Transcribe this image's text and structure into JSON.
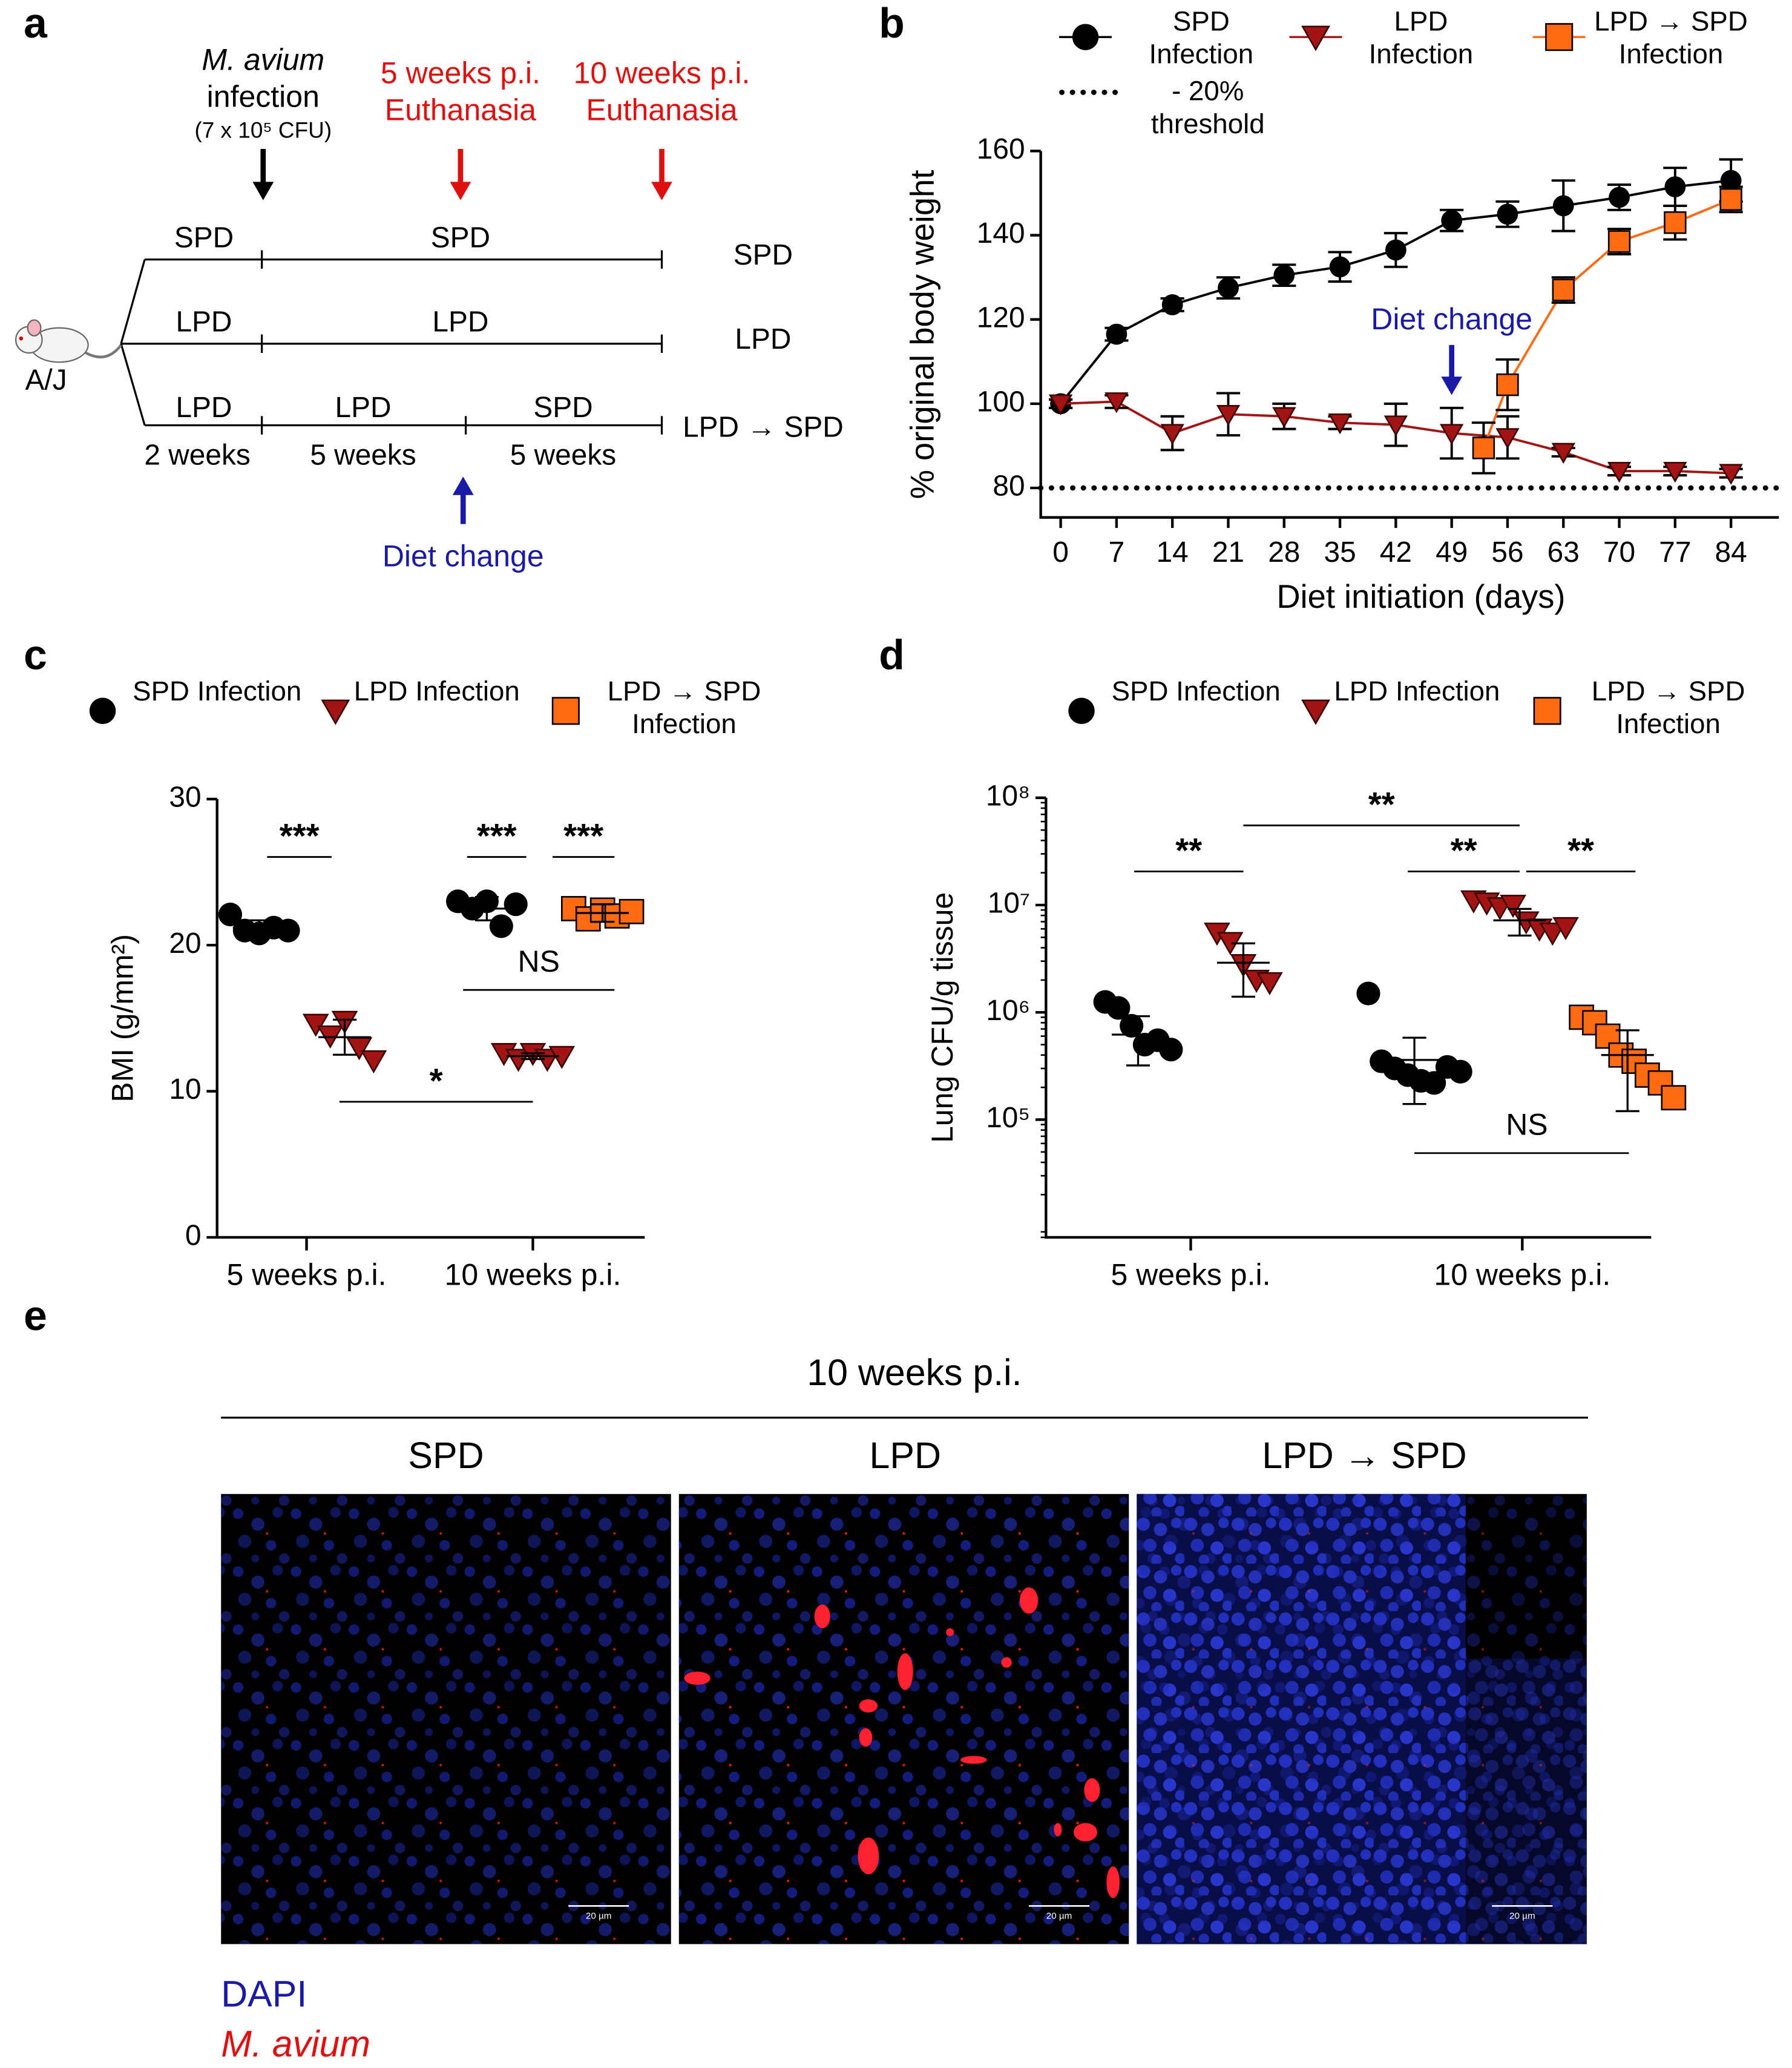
{
  "timeline": {
    "label": "a",
    "infection": {
      "organism": "M. avium",
      "text": "infection",
      "dose": "(7 x 10⁵ CFU)"
    },
    "euthanasia": [
      {
        "time": "5 weeks p.i.",
        "text": "Euthanasia"
      },
      {
        "time": "10 weeks p.i.",
        "text": "Euthanasia"
      }
    ],
    "mouse": "A/J",
    "rows": [
      {
        "segments": [
          "SPD",
          "SPD"
        ],
        "group": "SPD"
      },
      {
        "segments": [
          "LPD",
          "LPD"
        ],
        "group": "LPD"
      },
      {
        "segments": [
          "LPD",
          "LPD",
          "SPD"
        ],
        "group": "LPD → SPD"
      }
    ],
    "durations": [
      "2 weeks",
      "5 weeks",
      "5 weeks"
    ],
    "diet_change": "Diet change"
  },
  "chart_data": [
    {
      "panel": "b",
      "type": "line",
      "x_label": "Diet initiation (days)",
      "y_label": "% original body weight",
      "x": [
        0,
        7,
        14,
        21,
        28,
        35,
        42,
        49,
        56,
        63,
        70,
        77,
        84
      ],
      "xlim": [
        -2.5,
        90
      ],
      "xticks": [
        0,
        7,
        14,
        21,
        28,
        35,
        42,
        49,
        56,
        63,
        70,
        77,
        84
      ],
      "ylim": [
        73,
        160
      ],
      "yticks": [
        80,
        100,
        120,
        140,
        160
      ],
      "series": [
        {
          "name": "SPD Infection",
          "color": "#000000",
          "marker": "circle",
          "values": [
            100,
            116.5,
            123.5,
            127.5,
            130.5,
            132.5,
            136.5,
            143.5,
            145,
            147,
            149,
            151.5,
            153
          ],
          "errors": [
            1,
            1.5,
            1.5,
            2.5,
            2.5,
            3.5,
            4,
            2.5,
            3,
            6,
            3,
            4.5,
            5
          ]
        },
        {
          "name": "LPD Infection",
          "color": "#a31515",
          "marker": "triangle-down",
          "values": [
            100,
            100.5,
            93,
            97.5,
            97,
            95.5,
            95,
            93,
            92,
            88.5,
            84,
            84,
            83.5
          ],
          "errors": [
            1,
            1.5,
            4,
            5,
            3,
            1.5,
            5,
            6,
            5,
            1,
            1,
            1,
            1
          ]
        },
        {
          "name": "LPD → SPD Infection",
          "color": "#ff6a13",
          "marker": "square",
          "x": [
            53,
            56,
            63,
            70,
            77,
            84
          ],
          "values": [
            89.5,
            104.5,
            127,
            138.5,
            143,
            148.5
          ],
          "errors": [
            6,
            6,
            3,
            3,
            4,
            3
          ]
        }
      ],
      "threshold": {
        "label": "- 20% threshold",
        "value": 80
      },
      "annotation": {
        "text": "Diet change",
        "x": 49,
        "color": "#1a1aa6"
      }
    },
    {
      "panel": "c",
      "type": "scatter",
      "y_label": "BMI (g/mm²)",
      "categories": [
        "5 weeks p.i.",
        "10 weeks p.i."
      ],
      "ylim": [
        0,
        30
      ],
      "yticks": [
        0,
        10,
        20,
        30
      ],
      "series": [
        {
          "name": "SPD Infection",
          "color": "#000000",
          "marker": "circle",
          "values": [
            [
              22.1,
              21.0,
              20.8,
              21.2,
              21.0
            ],
            [
              23.0,
              22.5,
              23.0,
              21.3,
              22.8
            ]
          ],
          "mean": [
            21.2,
            22.5
          ],
          "sd": [
            0.5,
            0.8
          ]
        },
        {
          "name": "LPD Infection",
          "color": "#a31515",
          "marker": "triangle-down",
          "values": [
            [
              14.6,
              13.8,
              14.8,
              13.0,
              12.1
            ],
            [
              12.6,
              12.2,
              12.6,
              12.2,
              12.4
            ]
          ],
          "mean": [
            13.7,
            12.4
          ],
          "sd": [
            1.2,
            0.2
          ]
        },
        {
          "name": "LPD → SPD Infection",
          "color": "#ff6a13",
          "marker": "square",
          "values": [
            null,
            [
              22.5,
              21.8,
              22.4,
              22.0,
              22.3
            ]
          ],
          "mean": [
            null,
            22.2
          ],
          "sd": [
            null,
            0.6
          ]
        }
      ],
      "significance": [
        "***",
        "***",
        "***",
        "*",
        "NS"
      ]
    },
    {
      "panel": "d",
      "type": "scatter",
      "y_label": "Lung CFU/g tissue",
      "categories": [
        "5 weeks p.i.",
        "10 weeks p.i."
      ],
      "log_scale": true,
      "ylim": [
        8000,
        100000000
      ],
      "yticks": [
        {
          "value": 100000,
          "label": "10⁵"
        },
        {
          "value": 1000000,
          "label": "10⁶"
        },
        {
          "value": 10000000,
          "label": "10⁷"
        },
        {
          "value": 100000000,
          "label": "10⁸"
        }
      ],
      "series": [
        {
          "name": "SPD Infection",
          "color": "#000000",
          "marker": "circle",
          "values": [
            [
              1250000,
              1100000,
              750000,
              500000,
              550000,
              450000
            ],
            [
              1500000,
              350000,
              300000,
              260000,
              230000,
              220000,
              310000,
              280000
            ]
          ],
          "mean": [
            620000,
            360000
          ],
          "sd": [
            300000,
            220000
          ]
        },
        {
          "name": "LPD Infection",
          "color": "#a31515",
          "marker": "triangle-down",
          "values": [
            [
              5500000,
              4500000,
              2800000,
              2000000,
              1900000
            ],
            [
              11000000,
              10500000,
              9500000,
              10000000,
              7000000,
              6000000,
              5500000,
              6200000
            ]
          ],
          "mean": [
            2900000,
            7200000
          ],
          "sd": [
            1500000,
            2000000
          ]
        },
        {
          "name": "LPD → SPD Infection",
          "color": "#ff6a13",
          "marker": "square",
          "values": [
            null,
            [
              900000,
              800000,
              600000,
              400000,
              350000,
              260000,
              220000,
              160000
            ]
          ],
          "mean": [
            null,
            400000
          ],
          "sd": [
            null,
            280000
          ]
        }
      ],
      "significance": [
        "**",
        "**",
        "**",
        "**",
        "NS"
      ]
    }
  ],
  "micrographs": {
    "label": "e",
    "title": "10 weeks p.i.",
    "panels": [
      {
        "label": "SPD",
        "scale_bar": "20 µm"
      },
      {
        "label": "LPD",
        "scale_bar": "20 µm"
      },
      {
        "label": "LPD → SPD",
        "scale_bar": "20 µm"
      }
    ],
    "legend": [
      {
        "text": "DAPI",
        "color": "#1a1aa6"
      },
      {
        "text": "M. avium",
        "color": "#e01010"
      }
    ]
  }
}
